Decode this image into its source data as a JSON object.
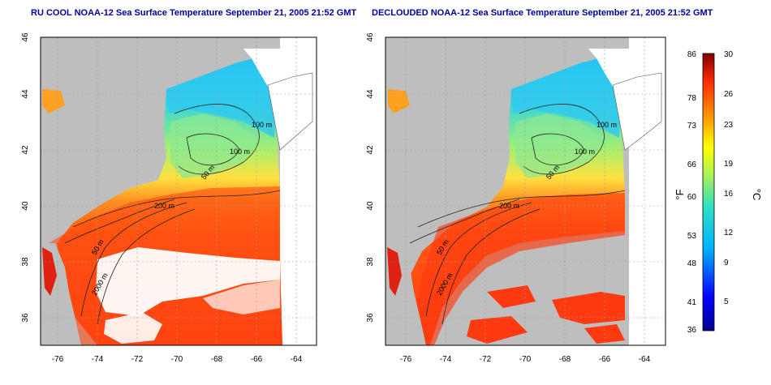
{
  "maps": [
    {
      "title": "RU COOL NOAA-12 Sea Surface Temperature September 21, 2005 21:52 GMT",
      "variant": "raw",
      "contour_labels": [
        "100 m",
        "100 m",
        "50 m",
        "200 m",
        "50 m",
        "2000 m"
      ]
    },
    {
      "title": "DECLOUDED NOAA-12 Sea Surface Temperature September 21, 2005 21:52 GMT",
      "variant": "declouded",
      "contour_labels": [
        "100 m",
        "100 m",
        "50 m",
        "200 m",
        "50 m",
        "2000 m"
      ]
    }
  ],
  "axes": {
    "lon_ticks": [
      "-76",
      "-74",
      "-72",
      "-70",
      "-68",
      "-66",
      "-64"
    ],
    "lat_ticks": [
      "46",
      "44",
      "42",
      "40",
      "38",
      "36"
    ]
  },
  "colorbar": {
    "fahrenheit_unit": "°F",
    "celsius_unit": "°C",
    "fahrenheit_ticks": [
      "86",
      "78",
      "73",
      "66",
      "60",
      "53",
      "48",
      "41",
      "36"
    ],
    "celsius_ticks": [
      "30",
      "26",
      "23",
      "19",
      "16",
      "12",
      "9",
      "5"
    ]
  },
  "colors": {
    "land": "#bebebe",
    "cloud": "#ffffff",
    "title": "#0000a0"
  }
}
